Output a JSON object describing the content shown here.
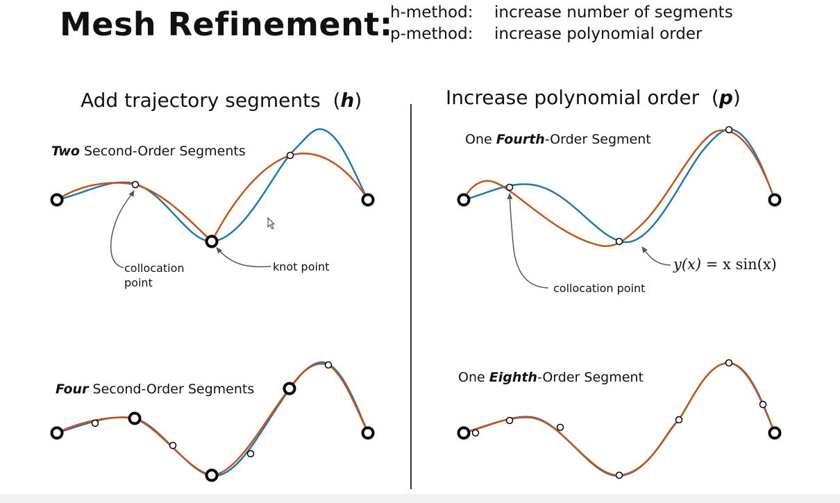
{
  "header": {
    "title": "Mesh Refinement:",
    "methods": [
      {
        "key": "h-method:",
        "desc": "increase number of segments"
      },
      {
        "key": "p-method:",
        "desc": "increase polynomial order"
      }
    ]
  },
  "left_panel": {
    "title": "Add trajectory segments",
    "symbol": "h",
    "top_label_bold": "Two",
    "top_label_rest": " Second-Order Segments",
    "bottom_label_bold": "Four",
    "bottom_label_rest": " Second-Order Segments",
    "annotation_collocation_line1": "collocation",
    "annotation_collocation_line2": "point",
    "annotation_knot": "knot point"
  },
  "right_panel": {
    "title": "Increase polynomial order",
    "symbol": "p",
    "top_label_pre": "One ",
    "top_label_bold": "Fourth",
    "top_label_rest": "-Order Segment",
    "bottom_label_pre": "One ",
    "bottom_label_bold": "Eighth",
    "bottom_label_rest": "-Order Segment",
    "annotation_collocation": "collocation point",
    "equation_lhs": "y(x)",
    "equation_rhs": "= x sin(x)"
  },
  "colors": {
    "true_curve": "#1f77b4",
    "approx_curve": "#c4541a",
    "markers": "#000000",
    "arrows": "#555555"
  }
}
